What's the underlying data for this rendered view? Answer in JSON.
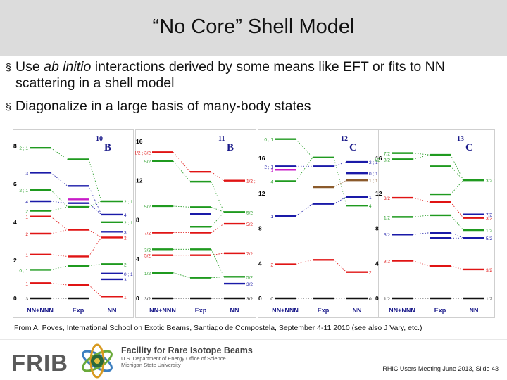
{
  "slide": {
    "title": "“No Core” Shell Model",
    "bullets": [
      {
        "mark": "§",
        "pre": "Use ",
        "italic": "ab initio",
        "post": " interactions derived by some means like EFT or fits to NN",
        "cont": "scattering in a shell model"
      },
      {
        "mark": "§",
        "pre": "Diagonalize in a large basis of many-body states",
        "italic": "",
        "post": "",
        "cont": ""
      }
    ],
    "citation": "From A. Poves, International School on Exotic Beams, Santiago de Compostela, September 4-11 2010 (see also J Vary, etc.)",
    "footer": {
      "org": "FRIB",
      "facility": "Facility for Rare Isotope Beams",
      "sub1": "U.S. Department of Energy Office of Science",
      "sub2": "Michigan State University",
      "slide_info": "RHIC Users Meeting June 2013, Slide 43"
    }
  },
  "colors": {
    "green": "#1f9a1f",
    "red": "#e01414",
    "blue": "#1a1aa8",
    "black": "#111111",
    "brown": "#8b5a2b",
    "magenta": "#c81cc8"
  },
  "chart_data": [
    {
      "type": "level-scheme",
      "nucleus_mass": "10",
      "nucleus_symbol": "B",
      "ticks": [
        "8",
        "6",
        "4",
        "2",
        "0"
      ],
      "columns": [
        "NN+NNN",
        "Exp",
        "NN"
      ],
      "ymax": 8.5,
      "levels": [
        {
          "col": 0,
          "e": 7.9,
          "c": "green",
          "spin": "2",
          "t": "1"
        },
        {
          "col": 0,
          "e": 6.6,
          "c": "blue",
          "spin": "3",
          "t": ""
        },
        {
          "col": 0,
          "e": 5.7,
          "c": "green",
          "spin": "2",
          "t": "1"
        },
        {
          "col": 0,
          "e": 5.1,
          "c": "blue",
          "spin": "4",
          "t": ""
        },
        {
          "col": 0,
          "e": 4.6,
          "c": "green",
          "spin": "2",
          "t": ""
        },
        {
          "col": 0,
          "e": 4.3,
          "c": "red",
          "spin": "1",
          "t": ""
        },
        {
          "col": 0,
          "e": 3.4,
          "c": "red",
          "spin": "2",
          "t": ""
        },
        {
          "col": 0,
          "e": 2.3,
          "c": "red",
          "spin": "1",
          "t": ""
        },
        {
          "col": 0,
          "e": 1.5,
          "c": "green",
          "spin": "0",
          "t": "1"
        },
        {
          "col": 0,
          "e": 0.8,
          "c": "red",
          "spin": "1",
          "t": ""
        },
        {
          "col": 0,
          "e": 0.0,
          "c": "black",
          "spin": "3",
          "t": ""
        },
        {
          "col": 1,
          "e": 7.3,
          "c": "green"
        },
        {
          "col": 1,
          "e": 5.9,
          "c": "blue"
        },
        {
          "col": 1,
          "e": 5.2,
          "c": "magenta"
        },
        {
          "col": 1,
          "e": 5.0,
          "c": "blue"
        },
        {
          "col": 1,
          "e": 4.8,
          "c": "green"
        },
        {
          "col": 1,
          "e": 3.6,
          "c": "red"
        },
        {
          "col": 1,
          "e": 2.2,
          "c": "red"
        },
        {
          "col": 1,
          "e": 1.7,
          "c": "green"
        },
        {
          "col": 1,
          "e": 0.7,
          "c": "red"
        },
        {
          "col": 1,
          "e": 0.0,
          "c": "black"
        },
        {
          "col": 2,
          "e": 5.1,
          "c": "green",
          "spin": "2",
          "t": "1"
        },
        {
          "col": 2,
          "e": 4.4,
          "c": "blue",
          "spin": "4",
          "t": ""
        },
        {
          "col": 2,
          "e": 4.0,
          "c": "green",
          "spin": "2",
          "t": "1"
        },
        {
          "col": 2,
          "e": 3.5,
          "c": "blue",
          "spin": "3",
          "t": ""
        },
        {
          "col": 2,
          "e": 3.2,
          "c": "red",
          "spin": "2",
          "t": ""
        },
        {
          "col": 2,
          "e": 1.8,
          "c": "green",
          "spin": "2",
          "t": ""
        },
        {
          "col": 2,
          "e": 1.3,
          "c": "blue",
          "spin": "0",
          "t": "1"
        },
        {
          "col": 2,
          "e": 1.0,
          "c": "blue",
          "spin": "3",
          "t": ""
        },
        {
          "col": 2,
          "e": 0.1,
          "c": "red",
          "spin": "1",
          "t": ""
        }
      ]
    },
    {
      "type": "level-scheme",
      "nucleus_mass": "11",
      "nucleus_symbol": "B",
      "ticks": [
        "16",
        "12",
        "8",
        "4",
        "0"
      ],
      "columns": [
        "NN+NNN",
        "Exp",
        "NN"
      ],
      "ymax": 16.5,
      "levels": [
        {
          "col": 0,
          "e": 14.9,
          "c": "red",
          "spin": "1/2",
          "t": "3/2"
        },
        {
          "col": 0,
          "e": 14.0,
          "c": "green",
          "spin": "5/2",
          "t": ""
        },
        {
          "col": 0,
          "e": 9.4,
          "c": "green",
          "spin": "5/2",
          "t": ""
        },
        {
          "col": 0,
          "e": 6.7,
          "c": "red",
          "spin": "7/2",
          "t": ""
        },
        {
          "col": 0,
          "e": 5.0,
          "c": "green",
          "spin": "3/2",
          "t": ""
        },
        {
          "col": 0,
          "e": 4.4,
          "c": "red",
          "spin": "5/2",
          "t": ""
        },
        {
          "col": 0,
          "e": 2.6,
          "c": "green",
          "spin": "1/2",
          "t": ""
        },
        {
          "col": 0,
          "e": 0.0,
          "c": "black",
          "spin": "3/2",
          "t": ""
        },
        {
          "col": 1,
          "e": 12.9,
          "c": "red"
        },
        {
          "col": 1,
          "e": 11.9,
          "c": "green"
        },
        {
          "col": 1,
          "e": 9.3,
          "c": "green"
        },
        {
          "col": 1,
          "e": 8.6,
          "c": "blue"
        },
        {
          "col": 1,
          "e": 7.3,
          "c": "green"
        },
        {
          "col": 1,
          "e": 6.7,
          "c": "red"
        },
        {
          "col": 1,
          "e": 5.0,
          "c": "green"
        },
        {
          "col": 1,
          "e": 4.4,
          "c": "red"
        },
        {
          "col": 1,
          "e": 2.1,
          "c": "green"
        },
        {
          "col": 1,
          "e": 0.0,
          "c": "black"
        },
        {
          "col": 2,
          "e": 12.0,
          "c": "red",
          "spin": "1/2",
          "t": "3/2"
        },
        {
          "col": 2,
          "e": 8.8,
          "c": "green",
          "spin": "5/2",
          "t": ""
        },
        {
          "col": 2,
          "e": 7.6,
          "c": "red",
          "spin": "5/2",
          "t": ""
        },
        {
          "col": 2,
          "e": 4.6,
          "c": "red",
          "spin": "7/2",
          "t": ""
        },
        {
          "col": 2,
          "e": 2.2,
          "c": "green",
          "spin": "5/2",
          "t": ""
        },
        {
          "col": 2,
          "e": 1.5,
          "c": "blue",
          "spin": "3/2",
          "t": ""
        },
        {
          "col": 2,
          "e": 0.0,
          "c": "black",
          "spin": "3/2",
          "t": ""
        }
      ]
    },
    {
      "type": "level-scheme",
      "nucleus_mass": "12",
      "nucleus_symbol": "C",
      "ticks": [
        "16",
        "12",
        "8",
        "4",
        "0"
      ],
      "columns": [
        "NN+NNN",
        "Exp",
        "NN"
      ],
      "ymax": 18.5,
      "levels": [
        {
          "col": 0,
          "e": 18.2,
          "c": "green",
          "spin": "0",
          "t": "1"
        },
        {
          "col": 0,
          "e": 15.1,
          "c": "blue",
          "spin": "2",
          "t": "1"
        },
        {
          "col": 0,
          "e": 14.7,
          "c": "magenta",
          "spin": "1",
          "t": ""
        },
        {
          "col": 0,
          "e": 13.4,
          "c": "green",
          "spin": "4",
          "t": ""
        },
        {
          "col": 0,
          "e": 9.4,
          "c": "blue",
          "spin": "1",
          "t": ""
        },
        {
          "col": 0,
          "e": 3.9,
          "c": "red",
          "spin": "2",
          "t": ""
        },
        {
          "col": 0,
          "e": 0.0,
          "c": "black",
          "spin": "0",
          "t": ""
        },
        {
          "col": 1,
          "e": 16.1,
          "c": "green"
        },
        {
          "col": 1,
          "e": 15.1,
          "c": "blue"
        },
        {
          "col": 1,
          "e": 12.7,
          "c": "brown"
        },
        {
          "col": 1,
          "e": 10.8,
          "c": "blue"
        },
        {
          "col": 1,
          "e": 4.4,
          "c": "red"
        },
        {
          "col": 1,
          "e": 0.0,
          "c": "black"
        },
        {
          "col": 2,
          "e": 15.6,
          "c": "blue",
          "spin": "2",
          "t": "1"
        },
        {
          "col": 2,
          "e": 14.3,
          "c": "blue",
          "spin": "0",
          "t": "1"
        },
        {
          "col": 2,
          "e": 13.5,
          "c": "brown",
          "spin": "1",
          "t": "1"
        },
        {
          "col": 2,
          "e": 11.6,
          "c": "blue",
          "spin": "1",
          "t": ""
        },
        {
          "col": 2,
          "e": 10.6,
          "c": "green",
          "spin": "4",
          "t": ""
        },
        {
          "col": 2,
          "e": 3.0,
          "c": "red",
          "spin": "2",
          "t": ""
        },
        {
          "col": 2,
          "e": 0.0,
          "c": "black",
          "spin": "0",
          "t": ""
        }
      ]
    },
    {
      "type": "level-scheme",
      "nucleus_mass": "13",
      "nucleus_symbol": "C",
      "ticks": [
        "16",
        "12",
        "8",
        "4",
        "0"
      ],
      "columns": [
        "NN+NNN",
        "Exp",
        "NN"
      ],
      "ymax": 18.5,
      "levels": [
        {
          "col": 0,
          "e": 16.6,
          "c": "green",
          "spin": "7/2",
          "t": ""
        },
        {
          "col": 0,
          "e": 15.9,
          "c": "green",
          "spin": "3/2",
          "t": "3/2"
        },
        {
          "col": 0,
          "e": 11.5,
          "c": "red",
          "spin": "3/2",
          "t": ""
        },
        {
          "col": 0,
          "e": 9.3,
          "c": "green",
          "spin": "1/2",
          "t": ""
        },
        {
          "col": 0,
          "e": 7.3,
          "c": "blue",
          "spin": "5/2",
          "t": ""
        },
        {
          "col": 0,
          "e": 4.3,
          "c": "red",
          "spin": "3/2",
          "t": ""
        },
        {
          "col": 0,
          "e": 0.0,
          "c": "black",
          "spin": "1/2",
          "t": ""
        },
        {
          "col": 1,
          "e": 16.4,
          "c": "green"
        },
        {
          "col": 1,
          "e": 15.1,
          "c": "green"
        },
        {
          "col": 1,
          "e": 11.9,
          "c": "green"
        },
        {
          "col": 1,
          "e": 11.0,
          "c": "red"
        },
        {
          "col": 1,
          "e": 9.5,
          "c": "green"
        },
        {
          "col": 1,
          "e": 7.5,
          "c": "blue"
        },
        {
          "col": 1,
          "e": 6.9,
          "c": "blue"
        },
        {
          "col": 1,
          "e": 3.7,
          "c": "red"
        },
        {
          "col": 1,
          "e": 0.0,
          "c": "black"
        },
        {
          "col": 2,
          "e": 13.5,
          "c": "green",
          "spin": "3/2",
          "t": "3/2"
        },
        {
          "col": 2,
          "e": 9.6,
          "c": "blue",
          "spin": "7/2",
          "t": ""
        },
        {
          "col": 2,
          "e": 9.2,
          "c": "red",
          "spin": "3/2",
          "t": ""
        },
        {
          "col": 2,
          "e": 7.8,
          "c": "green",
          "spin": "1/2",
          "t": ""
        },
        {
          "col": 2,
          "e": 6.9,
          "c": "blue",
          "spin": "5/2",
          "t": ""
        },
        {
          "col": 2,
          "e": 3.3,
          "c": "red",
          "spin": "3/2",
          "t": ""
        },
        {
          "col": 2,
          "e": 0.0,
          "c": "black",
          "spin": "1/2",
          "t": ""
        }
      ]
    }
  ]
}
